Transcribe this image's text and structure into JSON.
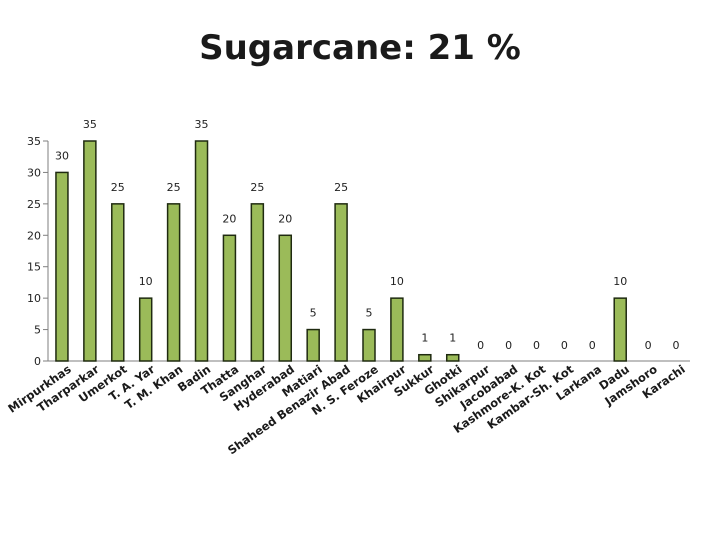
{
  "chart_data": {
    "type": "bar",
    "title": "Sugarcane: 21 %",
    "xlabel": "",
    "ylabel": "",
    "ylim": [
      0,
      35
    ],
    "yticks": [
      0,
      5,
      10,
      15,
      20,
      25,
      30,
      35
    ],
    "grid": false,
    "legend": "none",
    "bar_color": "#9bbb59",
    "bar_edge_color": "#1f2a10",
    "categories": [
      "Mirpurkhas",
      "Tharparkar",
      "Umerkot",
      "T. A. Yar",
      "T. M. Khan",
      "Badin",
      "Thatta",
      "Sanghar",
      "Hyderabad",
      "Matiari",
      "Shaheed Benazir Abad",
      "N. S. Feroze",
      "Khairpur",
      "Sukkur",
      "Ghotki",
      "Shikarpur",
      "Jacobabad",
      "Kashmore-K. Kot",
      "Kambar-Sh. Kot",
      "Larkana",
      "Dadu",
      "Jamshoro",
      "Karachi"
    ],
    "values": [
      30,
      35,
      25,
      10,
      25,
      35,
      20,
      25,
      20,
      5,
      25,
      5,
      10,
      1,
      1,
      0,
      0,
      0,
      0,
      0,
      10,
      0,
      0
    ],
    "data_labels": [
      "30",
      "35",
      "25",
      "10",
      "25",
      "35",
      "20",
      "25",
      "20",
      "5",
      "25",
      "5",
      "10",
      "1",
      "1",
      "0",
      "0",
      "0",
      "0",
      "0",
      "10",
      "0",
      "0"
    ]
  }
}
